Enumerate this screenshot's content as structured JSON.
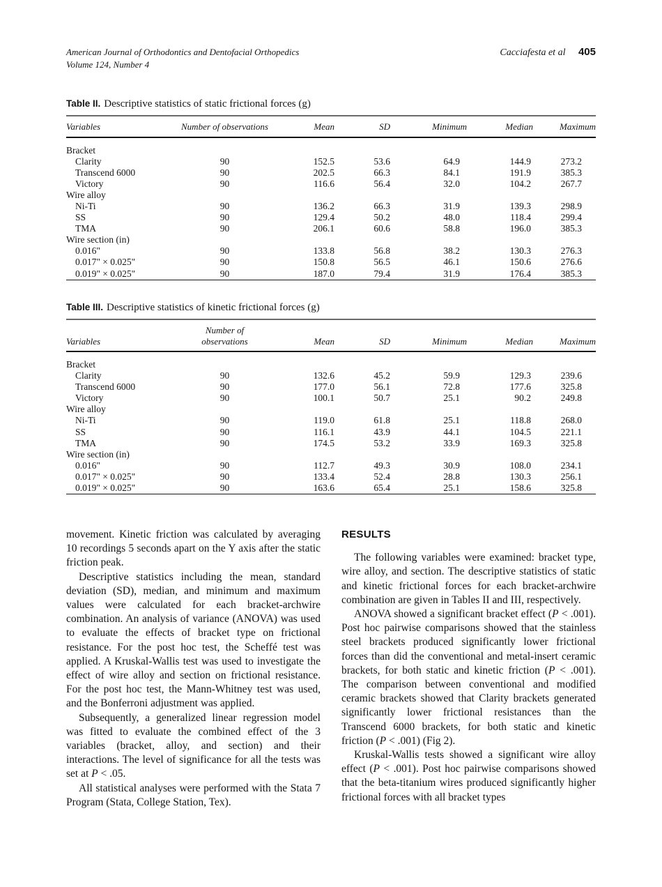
{
  "header": {
    "journal_line1": "American Journal of Orthodontics and Dentofacial Orthopedics",
    "journal_line2": "Volume 124, Number 4",
    "authors": "Cacciafesta et al",
    "page_number": "405"
  },
  "colors": {
    "page_background": "#ffffff",
    "text": "#151515",
    "caption_rule": "#6b6b6b",
    "header_rule": "#111111"
  },
  "tables": [
    {
      "caption_label": "Table II.",
      "caption_text": "Descriptive statistics of static frictional forces (g)",
      "columns": [
        {
          "label": "Variables",
          "align": "left"
        },
        {
          "label": "Number of observations",
          "align": "center"
        },
        {
          "label": "Mean",
          "align": "right"
        },
        {
          "label": "SD",
          "align": "right"
        },
        {
          "label": "Minimum",
          "align": "right"
        },
        {
          "label": "Median",
          "align": "right"
        },
        {
          "label": "Maximum",
          "align": "right"
        }
      ],
      "rows": [
        {
          "label": "Bracket",
          "group": true,
          "values": [
            "",
            "",
            "",
            "",
            "",
            ""
          ]
        },
        {
          "label": "Clarity",
          "group": false,
          "values": [
            "90",
            "152.5",
            "53.6",
            "64.9",
            "144.9",
            "273.2"
          ]
        },
        {
          "label": "Transcend 6000",
          "group": false,
          "values": [
            "90",
            "202.5",
            "66.3",
            "84.1",
            "191.9",
            "385.3"
          ]
        },
        {
          "label": "Victory",
          "group": false,
          "values": [
            "90",
            "116.6",
            "56.4",
            "32.0",
            "104.2",
            "267.7"
          ]
        },
        {
          "label": "Wire alloy",
          "group": true,
          "values": [
            "",
            "",
            "",
            "",
            "",
            ""
          ]
        },
        {
          "label": "Ni-Ti",
          "group": false,
          "values": [
            "90",
            "136.2",
            "66.3",
            "31.9",
            "139.3",
            "298.9"
          ]
        },
        {
          "label": "SS",
          "group": false,
          "values": [
            "90",
            "129.4",
            "50.2",
            "48.0",
            "118.4",
            "299.4"
          ]
        },
        {
          "label": "TMA",
          "group": false,
          "values": [
            "90",
            "206.1",
            "60.6",
            "58.8",
            "196.0",
            "385.3"
          ]
        },
        {
          "label": "Wire section (in)",
          "group": true,
          "values": [
            "",
            "",
            "",
            "",
            "",
            ""
          ]
        },
        {
          "label": "0.016\"",
          "group": false,
          "values": [
            "90",
            "133.8",
            "56.8",
            "38.2",
            "130.3",
            "276.3"
          ]
        },
        {
          "label": "0.017\" × 0.025\"",
          "group": false,
          "values": [
            "90",
            "150.8",
            "56.5",
            "46.1",
            "150.6",
            "276.6"
          ]
        },
        {
          "label": "0.019\" × 0.025\"",
          "group": false,
          "values": [
            "90",
            "187.0",
            "79.4",
            "31.9",
            "176.4",
            "385.3"
          ]
        }
      ]
    },
    {
      "caption_label": "Table III.",
      "caption_text": "Descriptive statistics of kinetic frictional forces (g)",
      "columns": [
        {
          "label": "Variables",
          "align": "left"
        },
        {
          "label": "Number of\nobservations",
          "align": "center"
        },
        {
          "label": "Mean",
          "align": "right"
        },
        {
          "label": "SD",
          "align": "right"
        },
        {
          "label": "Minimum",
          "align": "right"
        },
        {
          "label": "Median",
          "align": "right"
        },
        {
          "label": "Maximum",
          "align": "right"
        }
      ],
      "rows": [
        {
          "label": "Bracket",
          "group": true,
          "values": [
            "",
            "",
            "",
            "",
            "",
            ""
          ]
        },
        {
          "label": "Clarity",
          "group": false,
          "values": [
            "90",
            "132.6",
            "45.2",
            "59.9",
            "129.3",
            "239.6"
          ]
        },
        {
          "label": "Transcend 6000",
          "group": false,
          "values": [
            "90",
            "177.0",
            "56.1",
            "72.8",
            "177.6",
            "325.8"
          ]
        },
        {
          "label": "Victory",
          "group": false,
          "values": [
            "90",
            "100.1",
            "50.7",
            "25.1",
            "90.2",
            "249.8"
          ]
        },
        {
          "label": "Wire alloy",
          "group": true,
          "values": [
            "",
            "",
            "",
            "",
            "",
            ""
          ]
        },
        {
          "label": "Ni-Ti",
          "group": false,
          "values": [
            "90",
            "119.0",
            "61.8",
            "25.1",
            "118.8",
            "268.0"
          ]
        },
        {
          "label": "SS",
          "group": false,
          "values": [
            "90",
            "116.1",
            "43.9",
            "44.1",
            "104.5",
            "221.1"
          ]
        },
        {
          "label": "TMA",
          "group": false,
          "values": [
            "90",
            "174.5",
            "53.2",
            "33.9",
            "169.3",
            "325.8"
          ]
        },
        {
          "label": "Wire section (in)",
          "group": true,
          "values": [
            "",
            "",
            "",
            "",
            "",
            ""
          ]
        },
        {
          "label": "0.016\"",
          "group": false,
          "values": [
            "90",
            "112.7",
            "49.3",
            "30.9",
            "108.0",
            "234.1"
          ]
        },
        {
          "label": "0.017\" × 0.025\"",
          "group": false,
          "values": [
            "90",
            "133.4",
            "52.4",
            "28.8",
            "130.3",
            "256.1"
          ]
        },
        {
          "label": "0.019\" × 0.025\"",
          "group": false,
          "values": [
            "90",
            "163.6",
            "65.4",
            "25.1",
            "158.6",
            "325.8"
          ]
        }
      ]
    }
  ],
  "columns": {
    "left": {
      "paragraphs": [
        {
          "indent": false,
          "segments": [
            {
              "text": "movement. Kinetic friction was calculated by averaging 10 recordings 5 seconds apart on the Y axis after the static friction peak.",
              "italic": false
            }
          ]
        },
        {
          "indent": true,
          "segments": [
            {
              "text": "Descriptive statistics including the mean, standard deviation (SD), median, and minimum and maximum values were calculated for each bracket-archwire combination. An analysis of variance (ANOVA) was used to evaluate the effects of bracket type on frictional resistance. For the post hoc test, the Scheffé test was applied. A Kruskal-Wallis test was used to investigate the effect of wire alloy and section on frictional resistance. For the post hoc test, the Mann-Whitney test was used, and the Bonferroni adjustment was applied.",
              "italic": false
            }
          ]
        },
        {
          "indent": true,
          "segments": [
            {
              "text": "Subsequently, a generalized linear regression model was fitted to evaluate the combined effect of the 3 variables (bracket, alloy, and section) and their interactions. The level of significance for all the tests was set at ",
              "italic": false
            },
            {
              "text": "P",
              "italic": true
            },
            {
              "text": " < .05.",
              "italic": false
            }
          ]
        },
        {
          "indent": true,
          "segments": [
            {
              "text": "All statistical analyses were performed with the Stata 7 Program (Stata, College Station, Tex).",
              "italic": false
            }
          ]
        }
      ]
    },
    "right": {
      "heading": "RESULTS",
      "paragraphs": [
        {
          "indent": true,
          "segments": [
            {
              "text": "The following variables were examined: bracket type, wire alloy, and section. The descriptive statistics of static and kinetic frictional forces for each bracket-archwire combination are given in Tables II and III, respectively.",
              "italic": false
            }
          ]
        },
        {
          "indent": true,
          "segments": [
            {
              "text": "ANOVA showed a significant bracket effect (",
              "italic": false
            },
            {
              "text": "P",
              "italic": true
            },
            {
              "text": " < .001). Post hoc pairwise comparisons showed that the stainless steel brackets produced significantly lower frictional forces than did the conventional and metal-insert ceramic brackets, for both static and kinetic friction (",
              "italic": false
            },
            {
              "text": "P",
              "italic": true
            },
            {
              "text": " < .001). The comparison between conventional and modified ceramic brackets showed that Clarity brackets generated significantly lower frictional resistances than the Transcend 6000 brackets, for both static and kinetic friction (",
              "italic": false
            },
            {
              "text": "P",
              "italic": true
            },
            {
              "text": " < .001) (Fig 2).",
              "italic": false
            }
          ]
        },
        {
          "indent": true,
          "segments": [
            {
              "text": "Kruskal-Wallis tests showed a significant wire alloy effect (",
              "italic": false
            },
            {
              "text": "P",
              "italic": true
            },
            {
              "text": " < .001). Post hoc pairwise comparisons showed that the beta-titanium wires produced significantly higher frictional forces with all bracket types",
              "italic": false
            }
          ]
        }
      ]
    }
  }
}
